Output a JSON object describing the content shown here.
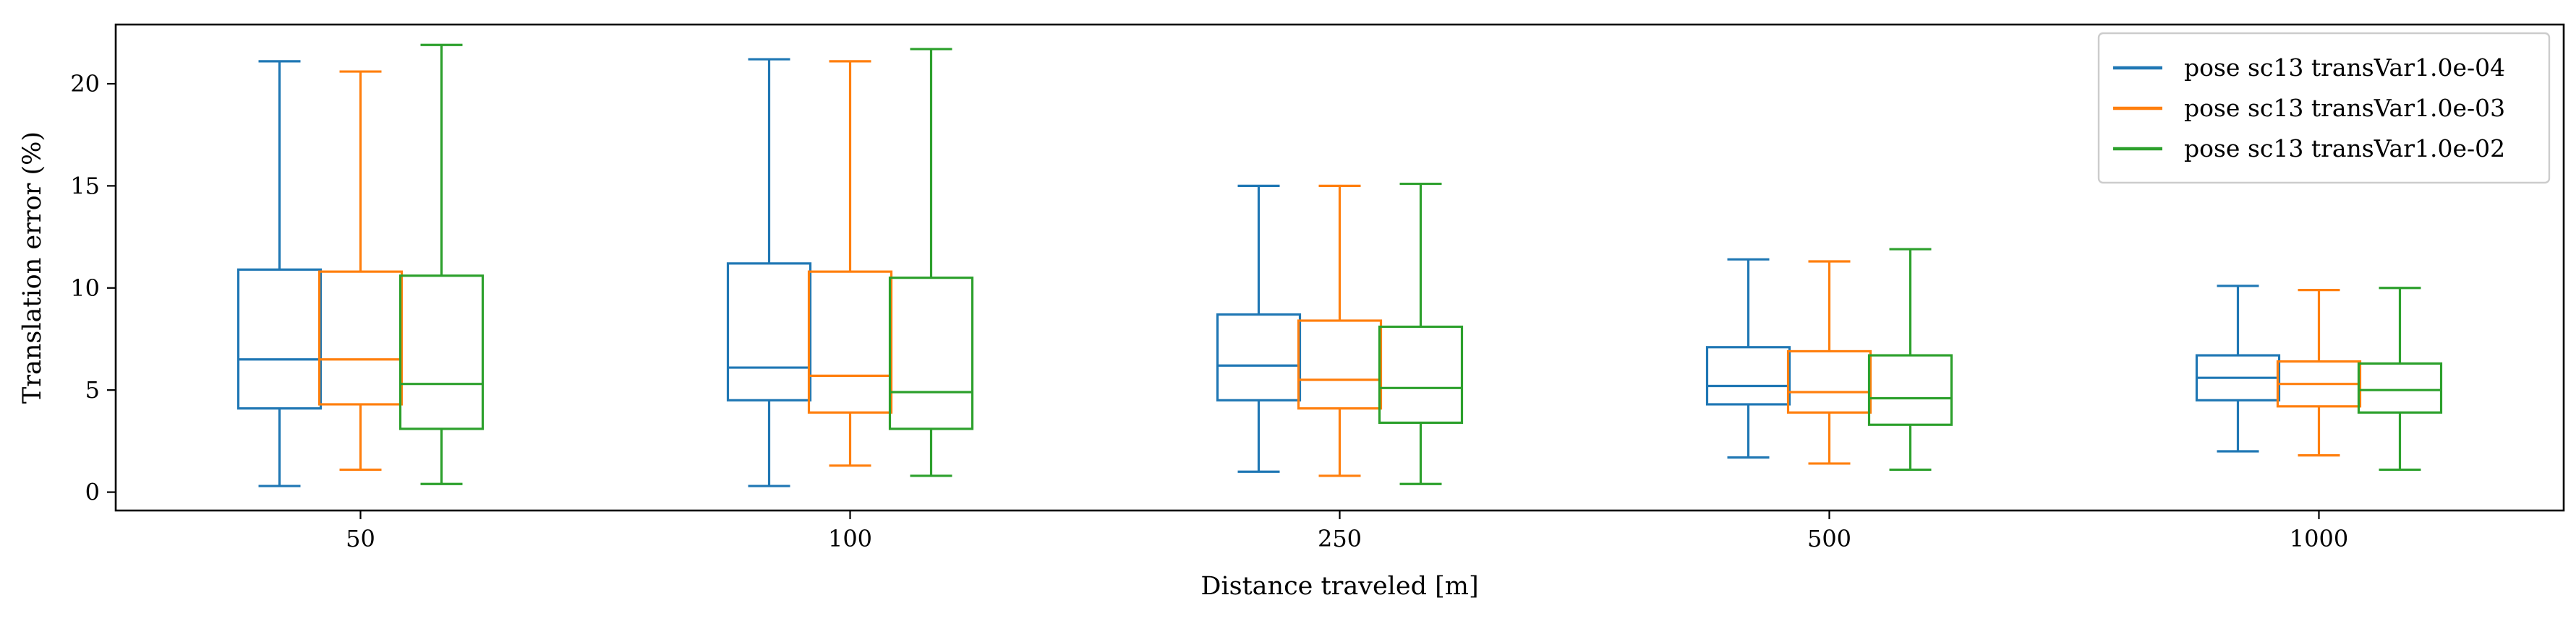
{
  "chart_data": {
    "type": "box",
    "title": "",
    "xlabel": "Distance traveled [m]",
    "ylabel": "Translation error (%)",
    "categories": [
      "50",
      "100",
      "250",
      "500",
      "1000"
    ],
    "ylim": [
      -0.9,
      22.9
    ],
    "yticks": [
      0,
      5,
      10,
      15,
      20
    ],
    "grid": false,
    "legend_position": "top-right",
    "series": [
      {
        "name": "pose sc13 transVar1.0e-04",
        "color": "#1f77b4",
        "boxes": [
          {
            "whislo": 0.3,
            "q1": 4.1,
            "med": 6.5,
            "q3": 10.9,
            "whishi": 21.1
          },
          {
            "whislo": 0.3,
            "q1": 4.5,
            "med": 6.1,
            "q3": 11.2,
            "whishi": 21.2
          },
          {
            "whislo": 1.0,
            "q1": 4.5,
            "med": 6.2,
            "q3": 8.7,
            "whishi": 15.0
          },
          {
            "whislo": 1.7,
            "q1": 4.3,
            "med": 5.2,
            "q3": 7.1,
            "whishi": 11.4
          },
          {
            "whislo": 2.0,
            "q1": 4.5,
            "med": 5.6,
            "q3": 6.7,
            "whishi": 10.1
          }
        ]
      },
      {
        "name": "pose sc13 transVar1.0e-03",
        "color": "#ff7f0e",
        "boxes": [
          {
            "whislo": 1.1,
            "q1": 4.3,
            "med": 6.5,
            "q3": 10.8,
            "whishi": 20.6
          },
          {
            "whislo": 1.3,
            "q1": 3.9,
            "med": 5.7,
            "q3": 10.8,
            "whishi": 21.1
          },
          {
            "whislo": 0.8,
            "q1": 4.1,
            "med": 5.5,
            "q3": 8.4,
            "whishi": 15.0
          },
          {
            "whislo": 1.4,
            "q1": 3.9,
            "med": 4.9,
            "q3": 6.9,
            "whishi": 11.3
          },
          {
            "whislo": 1.8,
            "q1": 4.2,
            "med": 5.3,
            "q3": 6.4,
            "whishi": 9.9
          }
        ]
      },
      {
        "name": "pose sc13 transVar1.0e-02",
        "color": "#2ca02c",
        "boxes": [
          {
            "whislo": 0.4,
            "q1": 3.1,
            "med": 5.3,
            "q3": 10.6,
            "whishi": 21.9
          },
          {
            "whislo": 0.8,
            "q1": 3.1,
            "med": 4.9,
            "q3": 10.5,
            "whishi": 21.7
          },
          {
            "whislo": 0.4,
            "q1": 3.4,
            "med": 5.1,
            "q3": 8.1,
            "whishi": 15.1
          },
          {
            "whislo": 1.1,
            "q1": 3.3,
            "med": 4.6,
            "q3": 6.7,
            "whishi": 11.9
          },
          {
            "whislo": 1.1,
            "q1": 3.9,
            "med": 5.0,
            "q3": 6.3,
            "whishi": 10.0
          }
        ]
      }
    ]
  }
}
